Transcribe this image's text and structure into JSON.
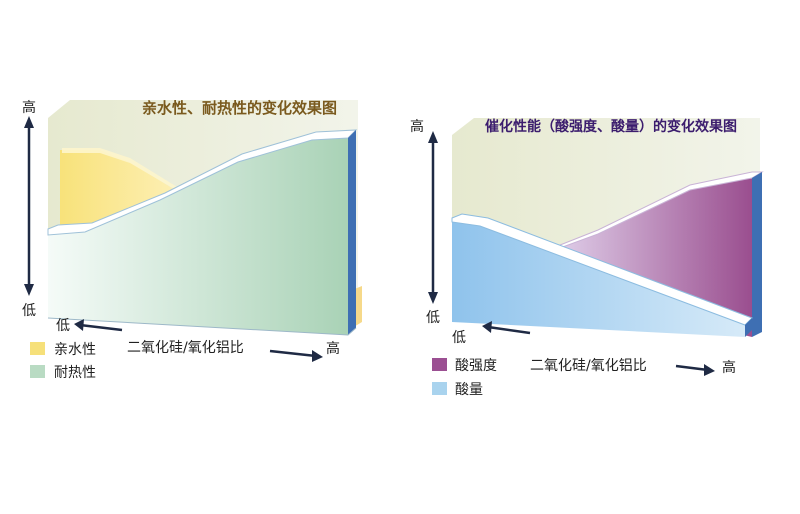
{
  "left_panel": {
    "title": "亲水性、耐热性的变化效果图",
    "y_high": "高",
    "y_low": "低",
    "x_low": "低",
    "x_high": "高",
    "x_label": "二氧化硅/氧化铝比",
    "legend": [
      {
        "label": "亲水性",
        "color": "#f6e07a"
      },
      {
        "label": "耐热性",
        "color": "#b9dbc3"
      }
    ]
  },
  "right_panel": {
    "title": "催化性能（酸强度、酸量）的变化效果图",
    "y_high": "高",
    "y_low": "低",
    "x_low": "低",
    "x_high": "高",
    "x_label": "二氧化硅/氧化铝比",
    "legend": [
      {
        "label": "酸强度",
        "color": "#9b4f92"
      },
      {
        "label": "酸量",
        "color": "#a9d3ee"
      }
    ]
  },
  "colors": {
    "background_wall": "#e8ead6",
    "yellow": "#f6e07a",
    "green": "#b9dbc3",
    "purple": "#9b4f92",
    "blue": "#a9d3ee",
    "edge_blue": "#3d6fb0"
  }
}
